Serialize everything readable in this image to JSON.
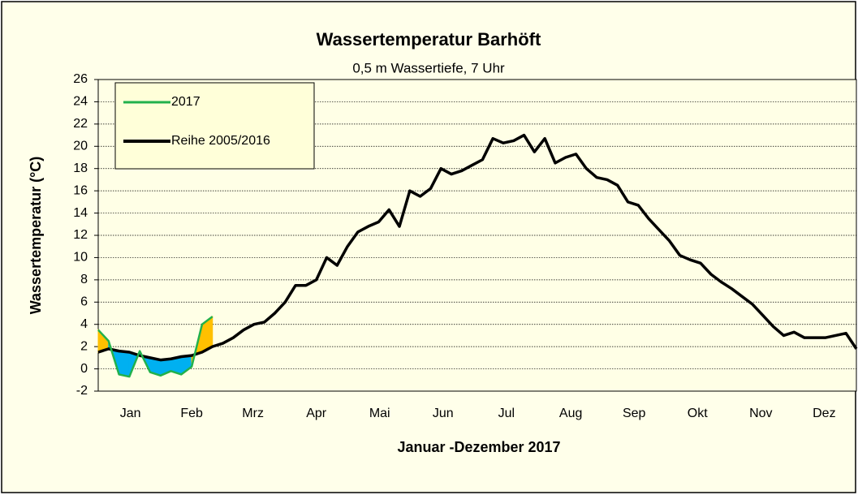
{
  "chart_data": {
    "type": "line",
    "title": "Wassertemperatur Barhöft",
    "subtitle": "0,5 m Wassertiefe, 7 Uhr",
    "x_label": "Januar -Dezember 2017",
    "y_label": "Wassertemperatur (°C)",
    "x": [
      0,
      5,
      10,
      15,
      20,
      25,
      30,
      35,
      40,
      45,
      50,
      55,
      60,
      65,
      70,
      75,
      80,
      85,
      90,
      95,
      100,
      105,
      110,
      115,
      120,
      125,
      130,
      135,
      140,
      145,
      150,
      155,
      160,
      165,
      170,
      175,
      180,
      185,
      190,
      195,
      200,
      205,
      210,
      215,
      220,
      225,
      230,
      235,
      240,
      245,
      250,
      255,
      260,
      265,
      270,
      275,
      280,
      285,
      290,
      295,
      300,
      305,
      310,
      315,
      320,
      325,
      330,
      335,
      340,
      345,
      350,
      355,
      360,
      365
    ],
    "series": [
      {
        "name": "2017",
        "color": "#22b14c",
        "values": [
          3.5,
          2.5,
          -0.5,
          -0.7,
          1.6,
          -0.3,
          -0.6,
          -0.2,
          -0.5,
          0.2,
          4.0,
          4.7,
          null,
          null,
          null,
          null,
          null,
          null,
          null,
          null,
          null,
          null,
          null,
          null,
          null,
          null,
          null,
          null,
          null,
          null,
          null,
          null,
          null,
          null,
          null,
          null,
          null,
          null,
          null,
          null,
          null,
          null,
          null,
          null,
          null,
          null,
          null,
          null,
          null,
          null,
          null,
          null,
          null,
          null,
          null,
          null,
          null,
          null,
          null,
          null,
          null,
          null,
          null,
          null,
          null,
          null,
          null,
          null,
          null,
          null,
          null,
          null,
          null,
          null
        ]
      },
      {
        "name": "Reihe 2005/2016",
        "color": "#000000",
        "values": [
          1.5,
          1.8,
          1.6,
          1.5,
          1.2,
          1.0,
          0.8,
          0.9,
          1.1,
          1.2,
          1.5,
          2.0,
          2.3,
          2.8,
          3.5,
          4.0,
          4.2,
          5.0,
          6.0,
          7.5,
          7.5,
          8.0,
          10.0,
          9.3,
          11.0,
          12.3,
          12.8,
          13.2,
          14.3,
          12.8,
          16.0,
          15.5,
          16.2,
          18.0,
          17.5,
          17.8,
          18.3,
          18.8,
          20.7,
          20.3,
          20.5,
          21.0,
          19.5,
          20.7,
          18.5,
          19.0,
          19.3,
          18.0,
          17.2,
          17.0,
          16.5,
          15.0,
          14.7,
          13.5,
          12.5,
          11.5,
          10.2,
          9.8,
          9.5,
          8.5,
          7.8,
          7.2,
          6.5,
          5.8,
          4.8,
          3.8,
          3.0,
          3.3,
          2.8,
          2.8,
          2.8,
          3.0,
          3.2,
          1.8
        ]
      }
    ],
    "xlim": [
      0,
      365
    ],
    "xticks": [
      {
        "value": 15.5,
        "label": "Jan"
      },
      {
        "value": 45,
        "label": "Feb"
      },
      {
        "value": 74.5,
        "label": "Mrz"
      },
      {
        "value": 105,
        "label": "Apr"
      },
      {
        "value": 135.5,
        "label": "Mai"
      },
      {
        "value": 166,
        "label": "Jun"
      },
      {
        "value": 196.5,
        "label": "Jul"
      },
      {
        "value": 227.5,
        "label": "Aug"
      },
      {
        "value": 258,
        "label": "Sep"
      },
      {
        "value": 288.5,
        "label": "Okt"
      },
      {
        "value": 319,
        "label": "Nov"
      },
      {
        "value": 349.5,
        "label": "Dez"
      }
    ],
    "ylim": [
      -2,
      26
    ],
    "yticks": [
      -2,
      0,
      2,
      4,
      6,
      8,
      10,
      12,
      14,
      16,
      18,
      20,
      22,
      24,
      26
    ],
    "grid": true,
    "legend": "upper left",
    "fill_above": "#ffc000",
    "fill_below": "#00b0f0"
  }
}
